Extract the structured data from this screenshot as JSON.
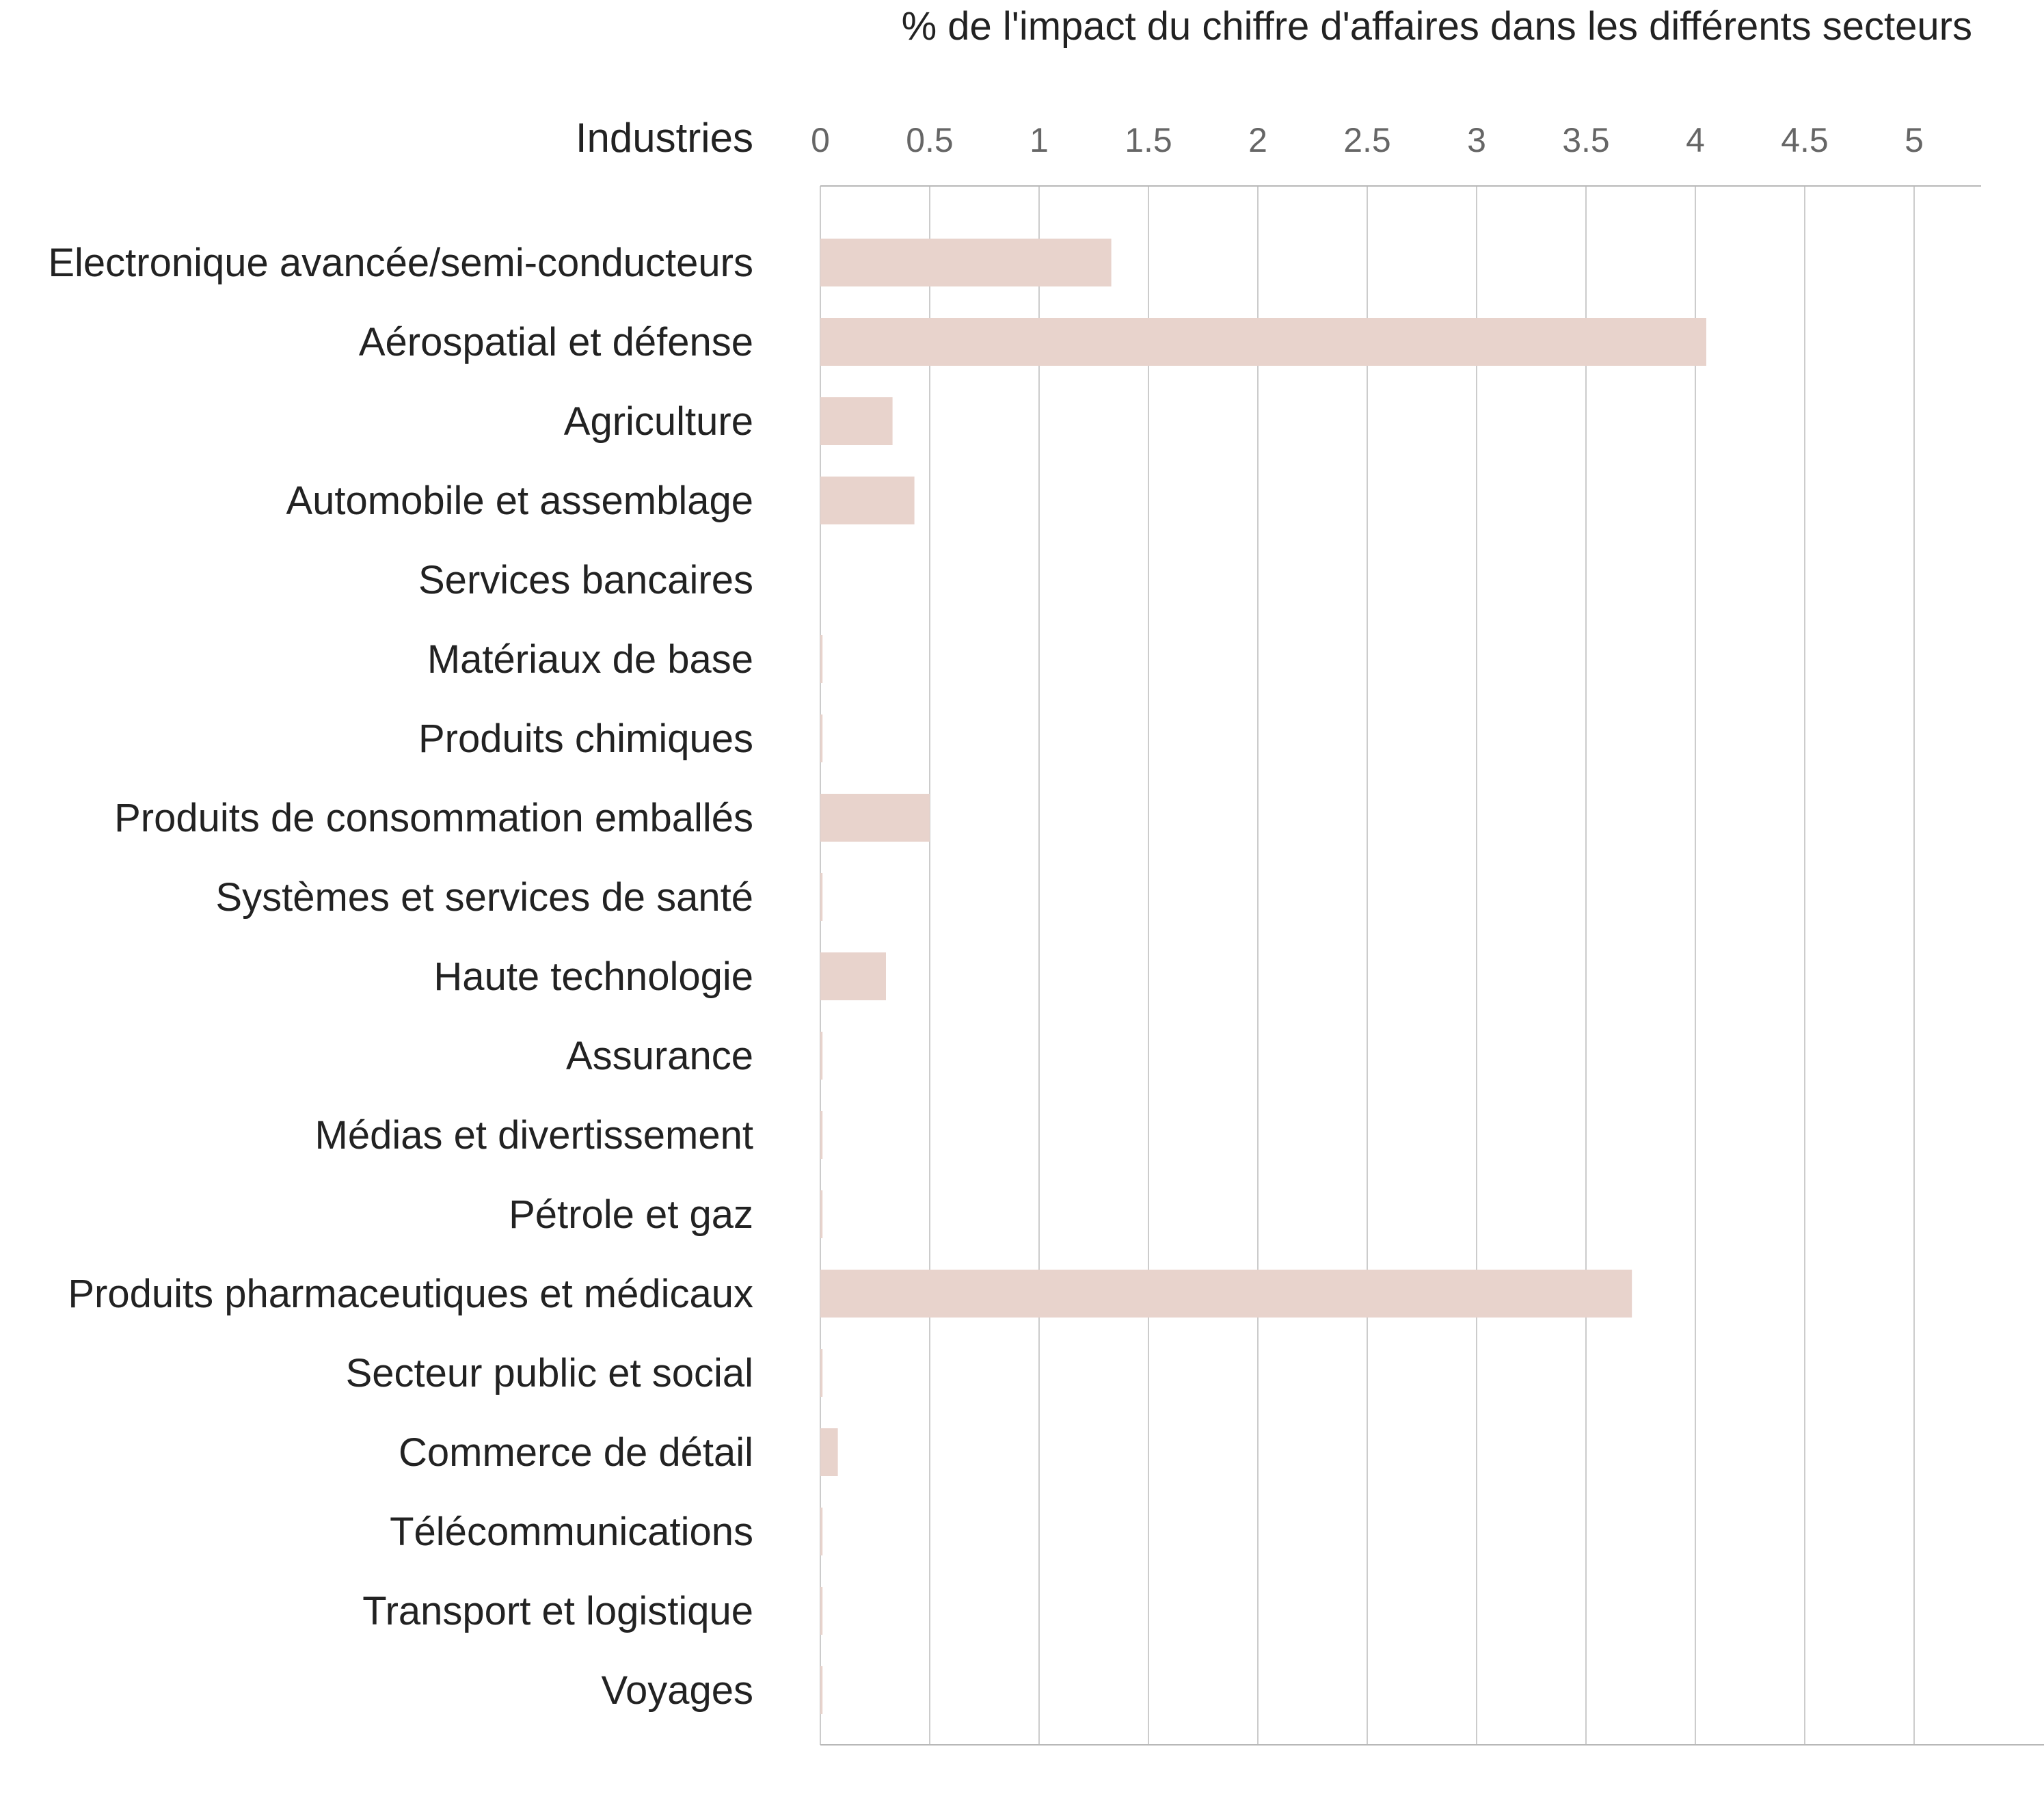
{
  "chart_data": {
    "type": "bar",
    "orientation": "horizontal",
    "title": "% de l'impact du chiffre d'affaires dans les différents secteurs",
    "category_header": "Industries",
    "xlim": [
      0,
      5.3
    ],
    "xticks": [
      0,
      0.5,
      1,
      1.5,
      2,
      2.5,
      3,
      3.5,
      4,
      4.5,
      5
    ],
    "tick_labels": [
      "0",
      "0.5",
      "1",
      "1.5",
      "2",
      "2.5",
      "3",
      "3.5",
      "4",
      "4.5",
      "5"
    ],
    "grid": true,
    "categories": [
      "Electronique avancée/semi-conducteurs",
      "Aérospatial et défense",
      "Agriculture",
      "Automobile et assemblage",
      "Services bancaires",
      "Matériaux de base",
      "Produits chimiques",
      "Produits de consommation emballés",
      "Systèmes et services de santé",
      "Haute technologie",
      "Assurance",
      "Médias et divertissement",
      "Pétrole et gaz",
      "Produits pharmaceutiques et médicaux",
      "Secteur public et social",
      "Commerce de détail",
      "Télécommunications",
      "Transport et logistique",
      "Voyages"
    ],
    "values": [
      1.33,
      4.05,
      0.33,
      0.43,
      0,
      0.01,
      0.01,
      0.5,
      0.01,
      0.3,
      0.01,
      0.01,
      0.01,
      3.71,
      0.01,
      0.08,
      0.01,
      0.01,
      0.01
    ]
  },
  "colors": {
    "bar": "#e8d3cc",
    "grid": "#cccccc",
    "axis_line": "#b8b8b8",
    "text": "#222222",
    "tick_text": "#666666",
    "background": "#ffffff"
  }
}
